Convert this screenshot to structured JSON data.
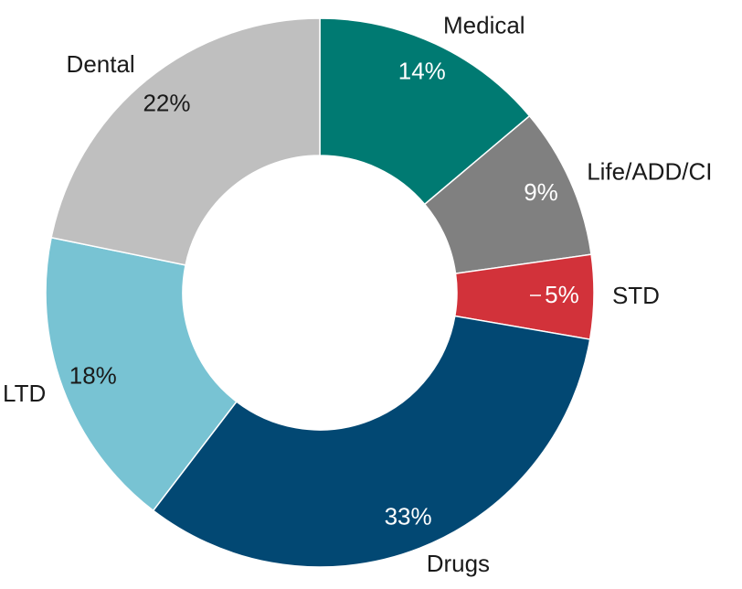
{
  "chart_data": {
    "type": "donut",
    "categories": [
      "Medical",
      "Life/ADD/CI",
      "STD",
      "Drugs",
      "LTD",
      "Dental"
    ],
    "values": [
      14,
      9,
      5,
      33,
      18,
      22
    ],
    "value_labels": [
      "14%",
      "9%",
      "5%",
      "33%",
      "18%",
      "22%"
    ],
    "colors": [
      "#007a72",
      "#808080",
      "#d2323a",
      "#024873",
      "#78c3d3",
      "#bfbfbf"
    ]
  }
}
